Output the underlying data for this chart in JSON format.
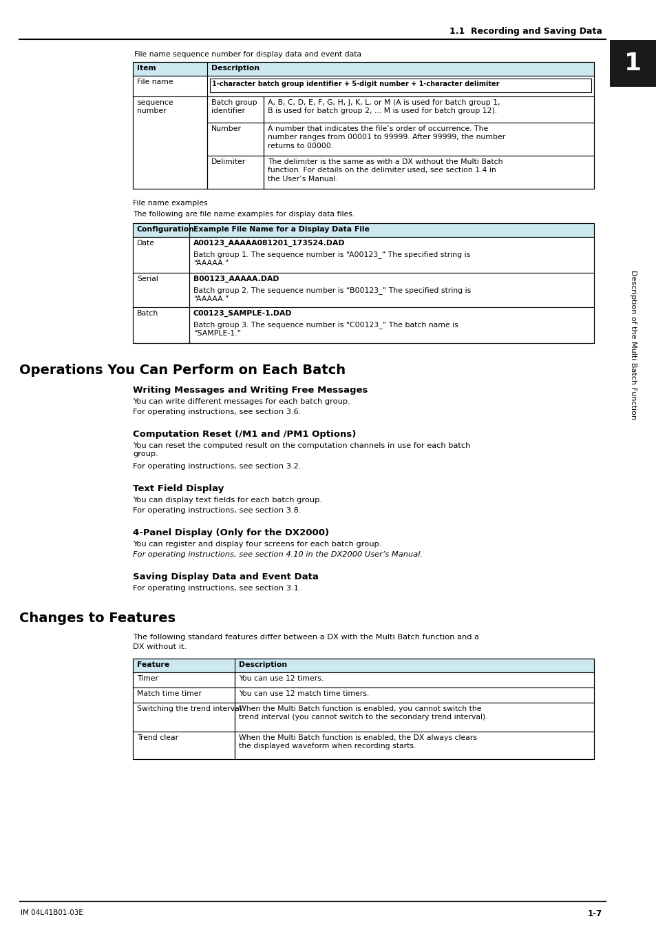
{
  "bg_color": "#ffffff",
  "header_title": "1.1  Recording and Saving Data",
  "sidebar_text": "Description of the Multi Batch Function",
  "sidebar_number": "1",
  "footer_left": "IM 04L41B01-03E",
  "footer_right": "1-7",
  "header_bg": "#cce8f0",
  "table1_label": "File name sequence number for display data and event data",
  "table1_headers": [
    "Item",
    "Description"
  ],
  "table1_header_bg": "#cce8f0",
  "table2_label1": "File name examples",
  "table2_label2": "The following are file name examples for display data files.",
  "table2_headers": [
    "Configuration",
    "Example File Name for a Display Data File"
  ],
  "table2_header_bg": "#cce8f0",
  "table2_rows": [
    {
      "col1": "Date",
      "col2_line1": "A00123_AAAAA081201_173524.DAD",
      "col2_line2": "Batch group 1. The sequence number is “A00123_” The specified string is\n“AAAAA.”"
    },
    {
      "col1": "Serial",
      "col2_line1": "B00123_AAAAA.DAD",
      "col2_line2": "Batch group 2. The sequence number is “B00123_” The specified string is\n“AAAAA.”"
    },
    {
      "col1": "Batch",
      "col2_line1": "C00123_SAMPLE-1.DAD",
      "col2_line2": "Batch group 3. The sequence number is “C00123_” The batch name is\n“SAMPLE-1.”"
    }
  ],
  "section1_title": "Operations You Can Perform on Each Batch",
  "subsections1": [
    {
      "title": "Writing Messages and Writing Free Messages",
      "lines": [
        "You can write different messages for each batch group.",
        "For operating instructions, see section 3.6."
      ]
    },
    {
      "title": "Computation Reset (/M1 and /PM1 Options)",
      "lines": [
        "You can reset the computed result on the computation channels in use for each batch\ngroup.",
        "For operating instructions, see section 3.2."
      ]
    },
    {
      "title": "Text Field Display",
      "lines": [
        "You can display text fields for each batch group.",
        "For operating instructions, see section 3.8."
      ]
    },
    {
      "title": "4-Panel Display (Only for the DX2000)",
      "lines": [
        "You can register and display four screens for each batch group.",
        "For operating instructions, see section 4.10 in the DX2000 User’s Manual."
      ]
    },
    {
      "title": "Saving Display Data and Event Data",
      "lines": [
        "For operating instructions, see section 3.1."
      ]
    }
  ],
  "section2_title": "Changes to Features",
  "section2_intro": "The following standard features differ between a DX with the Multi Batch function and a\nDX without it.",
  "table3_headers": [
    "Feature",
    "Description"
  ],
  "table3_header_bg": "#cce8f0",
  "table3_rows": [
    {
      "col1": "Timer",
      "col2": "You can use 12 timers."
    },
    {
      "col1": "Match time timer",
      "col2": "You can use 12 match time timers."
    },
    {
      "col1": "Switching the trend interval",
      "col2": "When the Multi Batch function is enabled, you cannot switch the\ntrend interval (you cannot switch to the secondary trend interval)."
    },
    {
      "col1": "Trend clear",
      "col2": "When the Multi Batch function is enabled, the DX always clears\nthe displayed waveform when recording starts."
    }
  ]
}
